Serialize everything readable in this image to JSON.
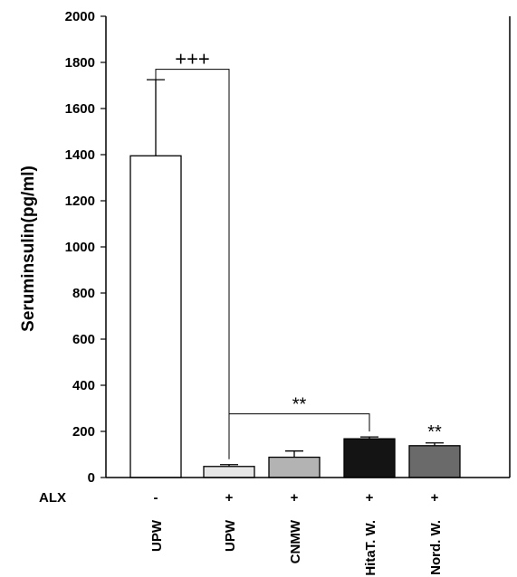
{
  "chart_data": {
    "type": "bar",
    "title": "",
    "xlabel": "",
    "ylabel": "Seruminsulin(pg/ml)",
    "ylim": [
      0,
      2000
    ],
    "yticks": [
      0,
      200,
      400,
      600,
      800,
      1000,
      1200,
      1400,
      1600,
      1800,
      2000
    ],
    "categories": [
      "UPW",
      "UPW",
      "CNMW",
      "HitaT. W.",
      "Nord. W."
    ],
    "values": [
      1395,
      48,
      88,
      168,
      138
    ],
    "errors": [
      330,
      8,
      27,
      8,
      12
    ],
    "bar_colors": [
      "#ffffff",
      "#e6e6e6",
      "#b3b3b3",
      "#141414",
      "#6a6a6a"
    ],
    "row_label": "ALX",
    "alx": [
      "-",
      "+",
      "+",
      "+",
      "+"
    ],
    "annotations": [
      {
        "text": "+++",
        "between": [
          0,
          1
        ]
      },
      {
        "text": "**",
        "between": [
          1,
          3
        ]
      },
      {
        "text": "**",
        "above": 4
      }
    ],
    "grid": false
  }
}
